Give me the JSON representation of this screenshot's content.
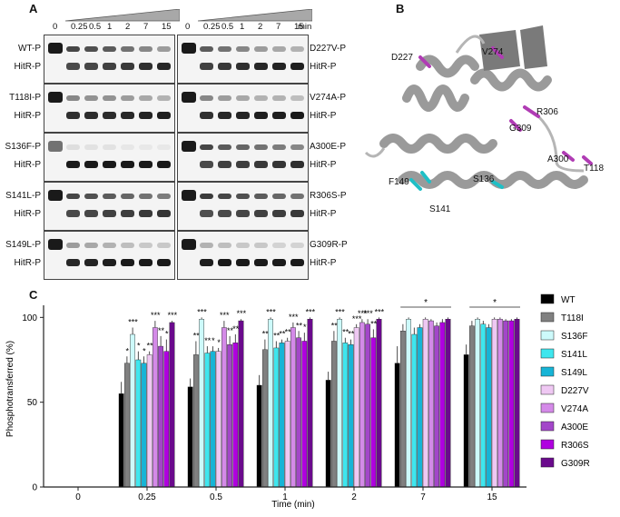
{
  "panels": {
    "a": "A",
    "b": "B",
    "c": "C"
  },
  "gel": {
    "timepoints": [
      "0",
      "0.25",
      "0.5",
      "1",
      "2",
      "7",
      "15"
    ],
    "time_unit": "min",
    "left_rows": [
      {
        "top": "WT-P",
        "bottom": "HitR-P",
        "intensity": [
          1.0,
          0.8,
          0.75,
          0.7,
          0.6,
          0.5,
          0.4
        ]
      },
      {
        "top": "T118I-P",
        "bottom": "HitR-P",
        "intensity": [
          1.0,
          0.5,
          0.45,
          0.45,
          0.4,
          0.35,
          0.3
        ]
      },
      {
        "top": "S136F-P",
        "bottom": "HitR-P",
        "intensity": [
          0.6,
          0.1,
          0.08,
          0.08,
          0.06,
          0.05,
          0.05
        ]
      },
      {
        "top": "S141L-P",
        "bottom": "HitR-P",
        "intensity": [
          1.0,
          0.8,
          0.75,
          0.7,
          0.65,
          0.6,
          0.55
        ]
      },
      {
        "top": "S149L-P",
        "bottom": "HitR-P",
        "intensity": [
          1.0,
          0.4,
          0.35,
          0.3,
          0.25,
          0.2,
          0.2
        ]
      }
    ],
    "right_rows": [
      {
        "top": "D227V-P",
        "bottom": "HitR-P",
        "intensity": [
          1.0,
          0.7,
          0.6,
          0.5,
          0.4,
          0.35,
          0.3
        ]
      },
      {
        "top": "V274A-P",
        "bottom": "HitR-P",
        "intensity": [
          1.0,
          0.5,
          0.4,
          0.35,
          0.3,
          0.3,
          0.25
        ]
      },
      {
        "top": "A300E-P",
        "bottom": "HitR-P",
        "intensity": [
          1.0,
          0.8,
          0.7,
          0.65,
          0.6,
          0.55,
          0.5
        ]
      },
      {
        "top": "R306S-P",
        "bottom": "HitR-P",
        "intensity": [
          1.0,
          0.85,
          0.8,
          0.75,
          0.7,
          0.65,
          0.6
        ]
      },
      {
        "top": "G309R-P",
        "bottom": "HitR-P",
        "intensity": [
          1.0,
          0.3,
          0.25,
          0.2,
          0.2,
          0.15,
          0.15
        ]
      }
    ]
  },
  "structure": {
    "labels": [
      "D227",
      "V274",
      "R306",
      "G309",
      "A300",
      "T118",
      "F149",
      "S136",
      "S141"
    ],
    "colors": {
      "ribbon": "#a9a9a9",
      "magenta": "#b03cb4",
      "cyan": "#1fbfc6"
    }
  },
  "chart_data": {
    "type": "bar",
    "xlabel": "Time (min)",
    "ylabel": "Phosphotransferred (%)",
    "ylim": [
      0,
      105
    ],
    "yticks": [
      0,
      50,
      100
    ],
    "categories": [
      "0",
      "0.25",
      "0.5",
      "1",
      "2",
      "7",
      "15"
    ],
    "series": [
      {
        "name": "WT",
        "color": "#000000",
        "values": [
          0,
          55,
          59,
          60,
          63,
          73,
          78
        ],
        "errors": [
          0,
          7,
          5,
          6,
          5,
          10,
          6
        ]
      },
      {
        "name": "T118I",
        "color": "#808080",
        "values": [
          0,
          73,
          78,
          81,
          86,
          92,
          95
        ],
        "errors": [
          0,
          4,
          8,
          6,
          6,
          4,
          3
        ]
      },
      {
        "name": "S136F",
        "color": "#cdfafb",
        "values": [
          0,
          90,
          99,
          99,
          99,
          99,
          99
        ],
        "errors": [
          0,
          4,
          1,
          1,
          1,
          1,
          1
        ]
      },
      {
        "name": "S141L",
        "color": "#3ee6ee",
        "values": [
          0,
          75,
          79,
          82,
          85,
          90,
          96
        ],
        "errors": [
          0,
          5,
          4,
          4,
          3,
          4,
          2
        ]
      },
      {
        "name": "S149L",
        "color": "#17b4d6",
        "values": [
          0,
          73,
          80,
          85,
          84,
          94,
          94
        ],
        "errors": [
          0,
          4,
          3,
          2,
          3,
          2,
          2
        ]
      },
      {
        "name": "D227V",
        "color": "#efc8f3",
        "values": [
          0,
          78,
          80,
          86,
          94,
          99,
          99
        ],
        "errors": [
          0,
          2,
          2,
          2,
          2,
          1,
          1
        ]
      },
      {
        "name": "V274A",
        "color": "#d48ae8",
        "values": [
          0,
          94,
          94,
          94,
          97,
          98,
          99
        ],
        "errors": [
          0,
          4,
          4,
          3,
          2,
          1,
          1
        ]
      },
      {
        "name": "A300E",
        "color": "#a346c9",
        "values": [
          0,
          83,
          84,
          88,
          96,
          95,
          98
        ],
        "errors": [
          0,
          6,
          5,
          4,
          3,
          2,
          1
        ]
      },
      {
        "name": "R306S",
        "color": "#b000e0",
        "values": [
          0,
          80,
          85,
          86,
          88,
          97,
          98
        ],
        "errors": [
          0,
          7,
          5,
          5,
          5,
          2,
          1
        ]
      },
      {
        "name": "G309R",
        "color": "#6a0a8c",
        "values": [
          0,
          97,
          98,
          99,
          99,
          99,
          99
        ],
        "errors": [
          0,
          1,
          1,
          1,
          1,
          1,
          1
        ]
      }
    ],
    "annotations": [
      {
        "category": "0.25",
        "stars": [
          "*",
          "***",
          "*",
          "*",
          "**",
          "***",
          "**",
          "*",
          "***"
        ]
      },
      {
        "category": "0.5",
        "stars": [
          "**",
          "***",
          "**",
          "*",
          "*",
          "***",
          "**",
          "**",
          "***"
        ]
      },
      {
        "category": "1",
        "stars": [
          "**",
          "***",
          "**",
          "**",
          "**",
          "***",
          "**",
          "*",
          "***"
        ]
      },
      {
        "category": "2",
        "stars": [
          "**",
          "***",
          "**",
          "**",
          "***",
          "***",
          "***",
          "**",
          "***"
        ]
      },
      {
        "category": "7",
        "stars": [
          "*"
        ]
      },
      {
        "category": "15",
        "stars": [
          "*"
        ]
      }
    ],
    "legend_position": "right"
  }
}
